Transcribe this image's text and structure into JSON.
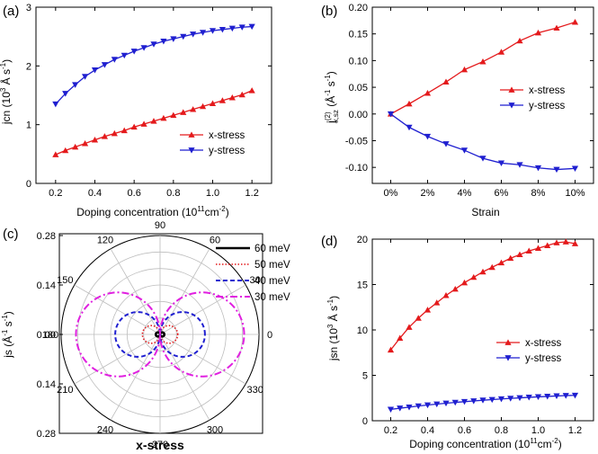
{
  "chart_data": [
    {
      "panel": "(a)",
      "type": "line",
      "xlabel": "Doping concentration (10",
      "xlabel_sup": "11",
      "xlabel_tail": "cm",
      "xlabel_sup2": "-2",
      "xlabel_end": ")",
      "ylabel": "jcn (10",
      "ylabel_sup": "3",
      "ylabel_mid": " Å s",
      "ylabel_sup2": "-1",
      "ylabel_end": ")",
      "xlim": [
        0.1,
        1.3
      ],
      "ylim": [
        0,
        3
      ],
      "xticks": [
        "0.2",
        "0.4",
        "0.6",
        "0.8",
        "1.0",
        "1.2"
      ],
      "yticks": [
        "0",
        "1",
        "2",
        "3"
      ],
      "legend_position": "bottom-right",
      "x": [
        0.2,
        0.25,
        0.3,
        0.35,
        0.4,
        0.45,
        0.5,
        0.55,
        0.6,
        0.65,
        0.7,
        0.75,
        0.8,
        0.85,
        0.9,
        0.95,
        1.0,
        1.05,
        1.1,
        1.15,
        1.2
      ],
      "series": [
        {
          "name": "x-stress",
          "color": "#e41a1c",
          "marker": "triangle-up",
          "values": [
            0.49,
            0.56,
            0.62,
            0.68,
            0.74,
            0.8,
            0.85,
            0.9,
            0.96,
            1.01,
            1.06,
            1.11,
            1.16,
            1.21,
            1.26,
            1.31,
            1.36,
            1.41,
            1.46,
            1.51,
            1.58
          ]
        },
        {
          "name": "y-stress",
          "color": "#1f1fd0",
          "marker": "triangle-down",
          "values": [
            1.35,
            1.53,
            1.68,
            1.82,
            1.93,
            2.02,
            2.11,
            2.18,
            2.25,
            2.31,
            2.37,
            2.42,
            2.46,
            2.5,
            2.54,
            2.57,
            2.6,
            2.62,
            2.64,
            2.66,
            2.67
          ]
        }
      ]
    },
    {
      "panel": "(b)",
      "type": "line",
      "xlabel": "Strain",
      "ylabel_main": "j",
      "ylabel_sup": "(2)",
      "ylabel_sub": "x,sz",
      "ylabel_unit": " (Å",
      "ylabel_unit_sup": "-1",
      "ylabel_unit_mid": " s",
      "ylabel_unit_sup2": "-1",
      "ylabel_end": ")",
      "xlim": [
        -1,
        11
      ],
      "ylim": [
        -0.13,
        0.2
      ],
      "xticks": [
        "0%",
        "2%",
        "4%",
        "6%",
        "8%",
        "10%"
      ],
      "yticks": [
        "0.20",
        "0.15",
        "0.10",
        "0.05",
        "0.00",
        "-0.05",
        "-0.10"
      ],
      "legend_position": "right",
      "x": [
        0,
        1,
        2,
        3,
        4,
        5,
        6,
        7,
        8,
        9,
        10
      ],
      "series": [
        {
          "name": "x-stress",
          "color": "#e41a1c",
          "marker": "triangle-up",
          "values": [
            0.0,
            0.019,
            0.039,
            0.06,
            0.083,
            0.098,
            0.116,
            0.137,
            0.152,
            0.161,
            0.172
          ]
        },
        {
          "name": "y-stress",
          "color": "#1f1fd0",
          "marker": "triangle-down",
          "values": [
            0.0,
            -0.025,
            -0.042,
            -0.056,
            -0.068,
            -0.083,
            -0.092,
            -0.095,
            -0.101,
            -0.104,
            -0.102
          ]
        }
      ]
    },
    {
      "panel": "(c)",
      "type": "polar",
      "xlabel": "x-stress",
      "ylabel": "js (Å",
      "ylabel_sup": "-1",
      "ylabel_mid": " s",
      "ylabel_sup2": "-1",
      "ylabel_end": ")",
      "rticks": [
        "0.28",
        "0.14",
        "0.00",
        "0.14",
        "0.28"
      ],
      "angle_ticks": [
        "0",
        "30",
        "60",
        "90",
        "120",
        "150",
        "180",
        "210",
        "240",
        "270",
        "300",
        "330"
      ],
      "rmax": 0.28,
      "legend_position": "top-right-outside",
      "series": [
        {
          "name": "60 meV",
          "color": "#000000",
          "dash": "solid",
          "amplitude": 0.012
        },
        {
          "name": "50 meV",
          "color": "#e41a1c",
          "dash": "dotted",
          "amplitude": 0.05
        },
        {
          "name": "40 meV",
          "color": "#1f1fd0",
          "dash": "dashed",
          "amplitude": 0.127
        },
        {
          "name": "30 meV",
          "color": "#e020e0",
          "dash": "dashdot",
          "amplitude": 0.238
        }
      ]
    },
    {
      "panel": "(d)",
      "type": "line",
      "xlabel": "Doping concentration (10",
      "xlabel_sup": "11",
      "xlabel_tail": "cm",
      "xlabel_sup2": "-2",
      "xlabel_end": ")",
      "ylabel": "jsn (10",
      "ylabel_sup": "3",
      "ylabel_mid": " Å s",
      "ylabel_sup2": "-1",
      "ylabel_end": ")",
      "xlim": [
        0.1,
        1.3
      ],
      "ylim": [
        0,
        20
      ],
      "xticks": [
        "0.2",
        "0.4",
        "0.6",
        "0.8",
        "1.0",
        "1.2"
      ],
      "yticks": [
        "0",
        "5",
        "10",
        "15",
        "20"
      ],
      "legend_position": "right",
      "x": [
        0.2,
        0.25,
        0.3,
        0.35,
        0.4,
        0.45,
        0.5,
        0.55,
        0.6,
        0.65,
        0.7,
        0.75,
        0.8,
        0.85,
        0.9,
        0.95,
        1.0,
        1.05,
        1.1,
        1.15,
        1.2
      ],
      "series": [
        {
          "name": "x-stress",
          "color": "#e41a1c",
          "marker": "triangle-up",
          "values": [
            7.8,
            9.1,
            10.3,
            11.3,
            12.2,
            13.0,
            13.8,
            14.5,
            15.2,
            15.8,
            16.4,
            16.9,
            17.4,
            17.9,
            18.3,
            18.7,
            19.0,
            19.3,
            19.6,
            19.7,
            19.5
          ]
        },
        {
          "name": "y-stress",
          "color": "#1f1fd0",
          "marker": "triangle-down",
          "values": [
            1.25,
            1.38,
            1.5,
            1.62,
            1.73,
            1.83,
            1.93,
            2.02,
            2.1,
            2.18,
            2.26,
            2.33,
            2.4,
            2.46,
            2.52,
            2.58,
            2.63,
            2.68,
            2.73,
            2.77,
            2.8
          ]
        }
      ]
    }
  ]
}
